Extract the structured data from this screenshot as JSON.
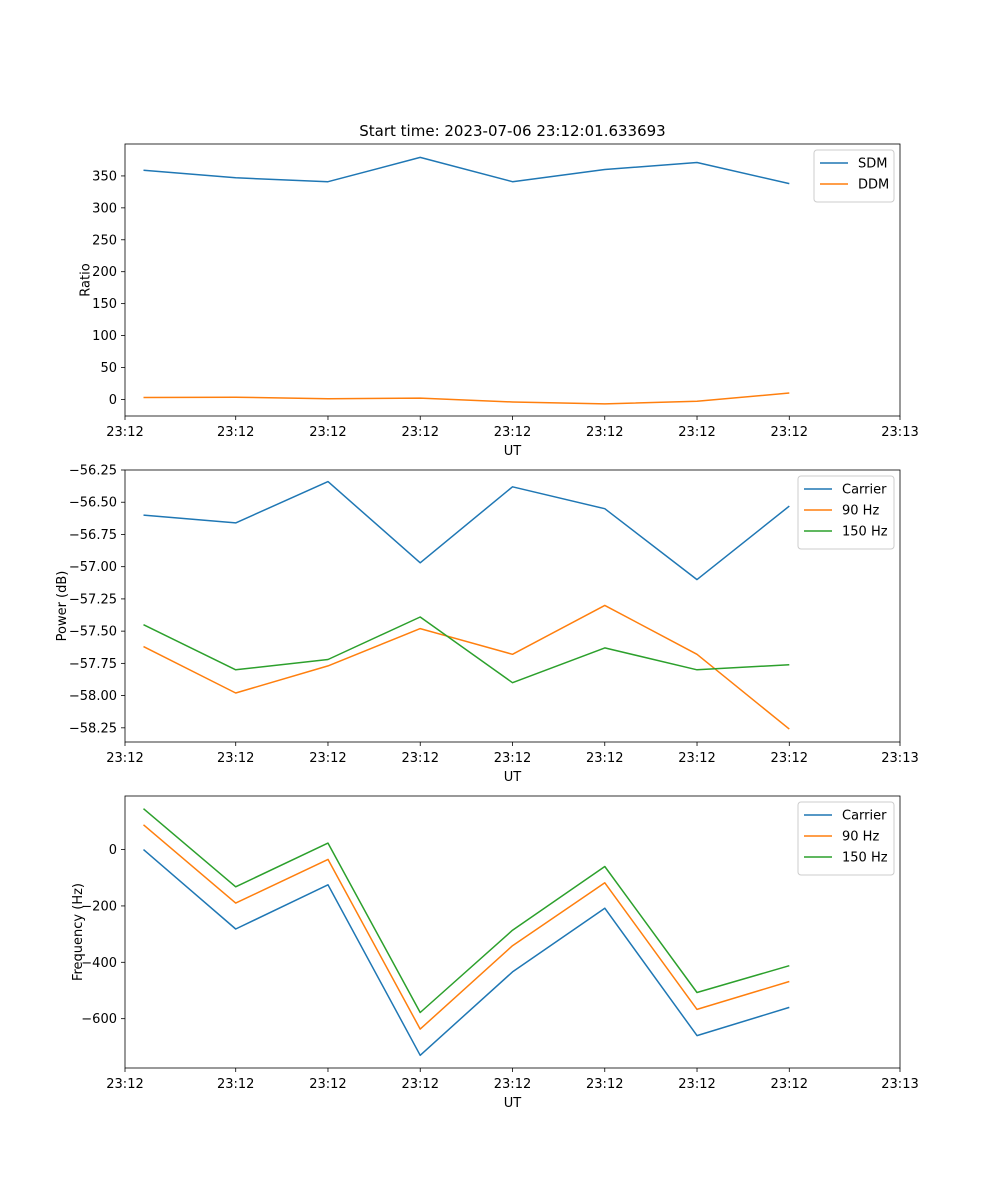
{
  "figure": {
    "title": "Start time: 2023-07-06 23:12:01.633693"
  },
  "chart_data": [
    {
      "type": "line",
      "title": "Start time: 2023-07-06 23:12:01.633693",
      "xlabel": "UT",
      "ylabel": "Ratio",
      "x": [
        1,
        2,
        3,
        4,
        5,
        6,
        7,
        8
      ],
      "xlim": [
        0.8,
        9.2
      ],
      "xtick_values": [
        0.8,
        2.0,
        3.0,
        4.0,
        5.0,
        6.0,
        7.0,
        8.0,
        9.2
      ],
      "xtick_labels": [
        "23:12",
        "23:12",
        "23:12",
        "23:12",
        "23:12",
        "23:12",
        "23:12",
        "23:12",
        "23:13"
      ],
      "ylim": [
        -26,
        400
      ],
      "yticks": [
        0,
        50,
        100,
        150,
        200,
        250,
        300,
        350
      ],
      "ytick_labels": [
        "0",
        "50",
        "100",
        "150",
        "200",
        "250",
        "300",
        "350"
      ],
      "legend_position": "top-right",
      "series": [
        {
          "name": "SDM",
          "color": "#1f77b4",
          "values": [
            359,
            347,
            341,
            379,
            341,
            360,
            371,
            338
          ]
        },
        {
          "name": "DDM",
          "color": "#ff7f0e",
          "values": [
            3,
            3.5,
            1,
            2,
            -4,
            -7,
            -3,
            10
          ]
        }
      ]
    },
    {
      "type": "line",
      "title": "",
      "xlabel": "UT",
      "ylabel": "Power (dB)",
      "x": [
        1,
        2,
        3,
        4,
        5,
        6,
        7,
        8
      ],
      "xlim": [
        0.8,
        9.2
      ],
      "xtick_values": [
        0.8,
        2.0,
        3.0,
        4.0,
        5.0,
        6.0,
        7.0,
        8.0,
        9.2
      ],
      "xtick_labels": [
        "23:12",
        "23:12",
        "23:12",
        "23:12",
        "23:12",
        "23:12",
        "23:12",
        "23:12",
        "23:13"
      ],
      "ylim": [
        -58.36,
        -56.25
      ],
      "yticks": [
        -58.25,
        -58.0,
        -57.75,
        -57.5,
        -57.25,
        -57.0,
        -56.75,
        -56.5,
        -56.25
      ],
      "ytick_labels": [
        "−58.25",
        "−58.00",
        "−57.75",
        "−57.50",
        "−57.25",
        "−57.00",
        "−56.75",
        "−56.50",
        "−56.25"
      ],
      "legend_position": "top-right",
      "series": [
        {
          "name": "Carrier",
          "color": "#1f77b4",
          "values": [
            -56.6,
            -56.66,
            -56.34,
            -56.97,
            -56.38,
            -56.55,
            -57.1,
            -56.53
          ]
        },
        {
          "name": "90 Hz",
          "color": "#ff7f0e",
          "values": [
            -57.62,
            -57.98,
            -57.77,
            -57.48,
            -57.68,
            -57.3,
            -57.68,
            -58.26
          ]
        },
        {
          "name": "150 Hz",
          "color": "#2ca02c",
          "values": [
            -57.45,
            -57.8,
            -57.72,
            -57.39,
            -57.9,
            -57.63,
            -57.8,
            -57.76
          ]
        }
      ]
    },
    {
      "type": "line",
      "title": "",
      "xlabel": "UT",
      "ylabel": "Frequency (Hz)",
      "x": [
        1,
        2,
        3,
        4,
        5,
        6,
        7,
        8
      ],
      "xlim": [
        0.8,
        9.2
      ],
      "xtick_values": [
        0.8,
        2.0,
        3.0,
        4.0,
        5.0,
        6.0,
        7.0,
        8.0,
        9.2
      ],
      "xtick_labels": [
        "23:12",
        "23:12",
        "23:12",
        "23:12",
        "23:12",
        "23:12",
        "23:12",
        "23:12",
        "23:13"
      ],
      "ylim": [
        -775,
        190
      ],
      "yticks": [
        -600,
        -400,
        -200,
        0
      ],
      "ytick_labels": [
        "−600",
        "−400",
        "−200",
        "0"
      ],
      "legend_position": "top-right",
      "series": [
        {
          "name": "Carrier",
          "color": "#1f77b4",
          "values": [
            0,
            -282,
            -125,
            -730,
            -434,
            -208,
            -660,
            -560
          ]
        },
        {
          "name": "90 Hz",
          "color": "#ff7f0e",
          "values": [
            88,
            -190,
            -35,
            -637,
            -341,
            -118,
            -567,
            -468
          ]
        },
        {
          "name": "150 Hz",
          "color": "#2ca02c",
          "values": [
            145,
            -132,
            23,
            -578,
            -286,
            -60,
            -507,
            -412
          ]
        }
      ]
    }
  ]
}
